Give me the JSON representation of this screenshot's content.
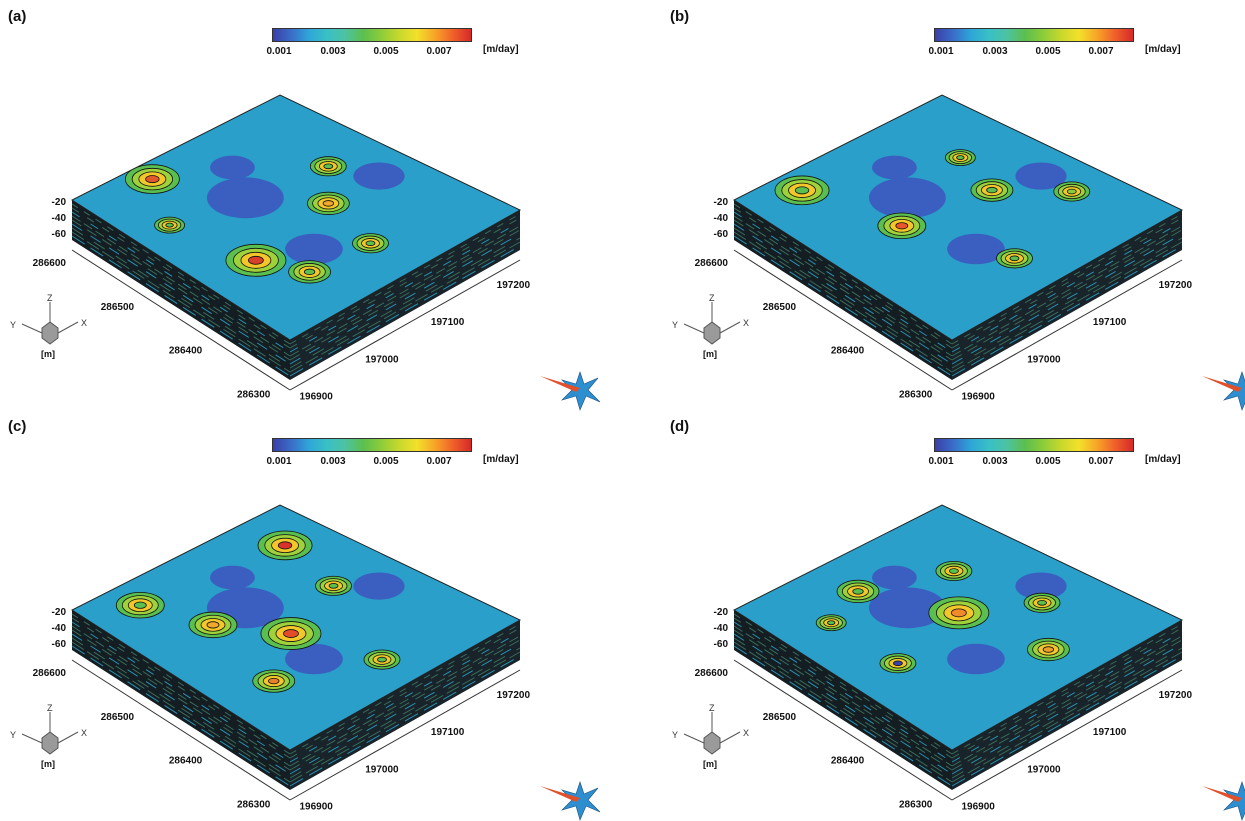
{
  "colorbar": {
    "ticks": [
      "0.001",
      "0.003",
      "0.005",
      "0.007"
    ],
    "unit": "[m/day]",
    "colors": [
      "#3b3fa8",
      "#3a6cc8",
      "#2ea6d8",
      "#39c0c6",
      "#4cc3a2",
      "#5bbf4f",
      "#8ccc3a",
      "#c8d82d",
      "#f3e02a",
      "#f7a427",
      "#f0602a",
      "#d62a2a"
    ]
  },
  "axes": {
    "z_ticks": [
      "-20",
      "-40",
      "-60"
    ],
    "left_ticks": [
      "286600",
      "286500",
      "286400",
      "286300"
    ],
    "right_ticks": [
      "196900",
      "197000",
      "197100",
      "197200"
    ],
    "triad": {
      "x": "X",
      "y": "Y",
      "z": "Z",
      "unit": "[m]"
    }
  },
  "panels": [
    {
      "label": "(a)"
    },
    {
      "label": "(b)"
    },
    {
      "label": "(c)"
    },
    {
      "label": "(d)"
    }
  ]
}
